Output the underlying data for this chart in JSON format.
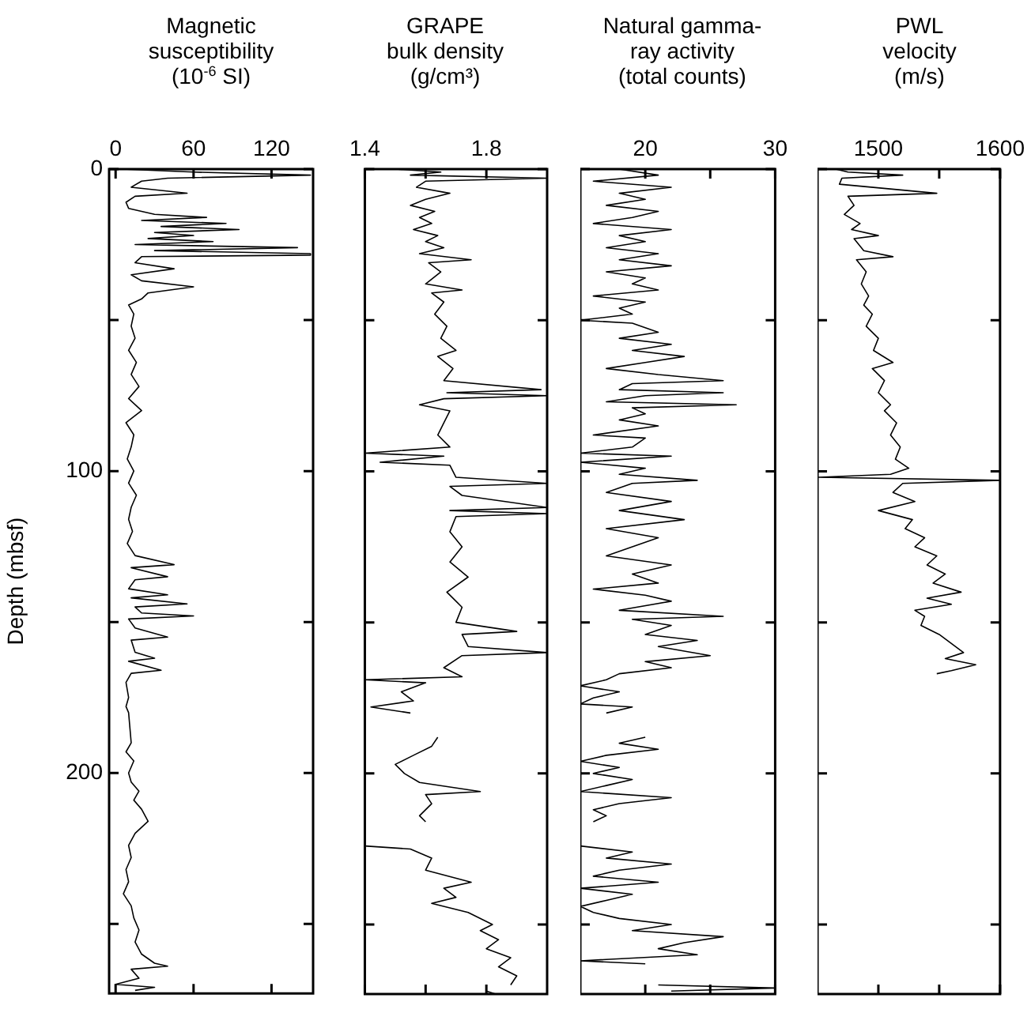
{
  "chart_data": [
    {
      "type": "line",
      "title": "Magnetic\nsusceptibility\n(10$^{-6}$ SI)",
      "ylabel": "Depth (mbsf)",
      "xlim": [
        -5,
        152
      ],
      "xticks": [
        0,
        60,
        120
      ],
      "ylim": [
        273,
        0
      ],
      "yticks": [
        0,
        {
          "value": 50,
          "label": null
        },
        100,
        {
          "value": 150,
          "label": null
        },
        200,
        {
          "value": 250,
          "label": null
        }
      ],
      "grid": false,
      "legend": false,
      "series": [
        {
          "color": "#000000",
          "x": [
            5,
            60,
            150,
            40,
            20,
            12,
            55,
            15,
            8,
            10,
            30,
            70,
            20,
            85,
            35,
            95,
            30,
            60,
            25,
            75,
            15,
            140,
            30,
            150,
            150,
            20,
            15,
            45,
            12,
            20,
            60,
            25,
            20,
            10,
            14,
            12,
            15,
            10,
            16,
            12,
            18,
            10,
            20,
            8,
            14,
            12,
            9,
            14,
            10,
            16,
            12,
            10,
            13,
            9,
            15,
            45,
            12,
            40,
            15,
            10,
            40,
            12,
            55,
            15,
            20,
            60,
            10,
            15,
            40,
            12,
            15,
            30,
            10,
            35,
            12,
            8,
            10,
            8,
            10,
            12,
            8,
            14,
            10,
            12,
            18,
            14,
            20,
            25,
            15,
            10,
            12,
            8,
            10,
            6,
            12,
            14,
            18,
            15,
            20,
            30,
            40,
            12,
            18,
            0,
            30,
            15
          ],
          "values": [
            0,
            1,
            2,
            3,
            4,
            6,
            8,
            9,
            11,
            13,
            15,
            16,
            17,
            18,
            19,
            20,
            21,
            22,
            23,
            24,
            25,
            26,
            27,
            28,
            28.5,
            29,
            31,
            33,
            35,
            37,
            39,
            41,
            43,
            45,
            48,
            52,
            56,
            60,
            64,
            68,
            72,
            76,
            80,
            84,
            88,
            92,
            96,
            100,
            104,
            108,
            112,
            116,
            120,
            124,
            128,
            131,
            132,
            135,
            136,
            139,
            141,
            142,
            144,
            145,
            147,
            148,
            149,
            152,
            155,
            156,
            160,
            162,
            163,
            166,
            167,
            170,
            175,
            178,
            180,
            190,
            193,
            196,
            200,
            203,
            206,
            209,
            212,
            216,
            220,
            224,
            228,
            232,
            236,
            240,
            244,
            248,
            252,
            256,
            260,
            263,
            264,
            265,
            268,
            270,
            271,
            272
          ]
        }
      ]
    },
    {
      "type": "line",
      "title": "GRAPE\nbulk density\n(g/cm³)",
      "xlim": [
        1.4,
        2.0
      ],
      "xticks": [
        1.4,
        {
          "value": 1.6,
          "label": null
        },
        1.8
      ],
      "ylim": [
        273,
        0
      ],
      "yticks": [
        0,
        {
          "value": 50,
          "label": null
        },
        100,
        {
          "value": 150,
          "label": null
        },
        200,
        {
          "value": 250,
          "label": null
        }
      ],
      "tick_labels": "x",
      "grid": false,
      "legend": false,
      "series": [
        {
          "color": "#000000",
          "x": [
            1.5,
            1.65,
            1.55,
            2.0,
            1.6,
            1.57,
            1.68,
            1.6,
            1.55,
            1.63,
            1.58,
            1.62,
            1.56,
            1.64,
            1.6,
            1.66,
            1.58,
            1.75,
            1.61,
            1.65,
            1.6,
            1.72,
            1.62,
            1.66,
            1.63,
            1.67,
            1.65,
            1.7,
            1.64,
            1.69,
            1.66,
            1.98,
            1.67,
            2.0,
            1.66,
            1.58,
            1.68,
            1.66,
            1.64,
            1.68,
            1.4,
            1.66,
            1.45,
            1.68,
            1.7,
            2.0,
            1.68,
            1.72,
            2.0,
            1.68,
            2.0,
            1.7,
            1.68,
            1.72,
            1.68,
            1.74,
            1.67,
            1.72,
            1.7,
            1.9,
            1.72,
            1.74,
            2.0,
            1.72,
            1.66,
            1.72,
            1.4,
            1.6,
            1.52,
            1.56,
            1.42,
            1.55,
            null,
            1.64,
            1.62,
            1.56,
            1.5,
            1.53,
            1.58,
            1.78,
            1.6,
            1.62,
            1.58,
            1.6,
            null,
            1.4,
            1.55,
            1.62,
            1.6,
            1.75,
            1.66,
            1.7,
            1.62,
            1.74,
            1.82,
            1.78,
            1.84,
            1.8,
            1.88,
            1.84,
            1.9,
            1.88,
            null,
            1.8,
            1.83
          ],
          "values": [
            0,
            1,
            2,
            3,
            4,
            6,
            8,
            10,
            12,
            14,
            16,
            18,
            20,
            22,
            24,
            26,
            28,
            30,
            31,
            34,
            38,
            40,
            41,
            44,
            48,
            52,
            56,
            60,
            62,
            66,
            70,
            73,
            74,
            75,
            76,
            78,
            80,
            84,
            88,
            92,
            94,
            95,
            97,
            98,
            102,
            104,
            105,
            108,
            112,
            113,
            114,
            115,
            120,
            125,
            130,
            135,
            140,
            145,
            150,
            153,
            154,
            158,
            160,
            161,
            165,
            168,
            169,
            170,
            173,
            176,
            178,
            180,
            null,
            188,
            191,
            194,
            197,
            200,
            203,
            206,
            207,
            210,
            214,
            216,
            null,
            224,
            225,
            228,
            232,
            236,
            238,
            241,
            243,
            246,
            250,
            252,
            255,
            258,
            261,
            264,
            267,
            270,
            null,
            272,
            273
          ]
        }
      ]
    },
    {
      "type": "line",
      "title": "Natural gamma-\nray activity\n(total counts)",
      "xlim": [
        15,
        30
      ],
      "xticks": [
        20,
        {
          "value": 25,
          "label": null
        },
        30
      ],
      "ylim": [
        273,
        0
      ],
      "yticks": [
        0,
        {
          "value": 50,
          "label": null
        },
        100,
        {
          "value": 150,
          "label": null
        },
        200,
        {
          "value": 250,
          "label": null
        }
      ],
      "tick_labels": "x",
      "grid": false,
      "legend": false,
      "series": [
        {
          "color": "#000000",
          "x": [
            18,
            21,
            16,
            22,
            18,
            20,
            17,
            21,
            19,
            16,
            22,
            18,
            20,
            17,
            21,
            18,
            22,
            17,
            20,
            19,
            21,
            16,
            20,
            18,
            19,
            15,
            19,
            21,
            18,
            22,
            19,
            23,
            20,
            17,
            21,
            26,
            19,
            18,
            26,
            20,
            17,
            27,
            19,
            20,
            18,
            21,
            16,
            20,
            19,
            15,
            22,
            15,
            20,
            18,
            24,
            19,
            17,
            22,
            18,
            23,
            17,
            21,
            19,
            17,
            22,
            19,
            21,
            16,
            20,
            22,
            18,
            26,
            19,
            22,
            20,
            24,
            21,
            25,
            20,
            22,
            18,
            17,
            15,
            18,
            16,
            15,
            19,
            17,
            null,
            20,
            18,
            21,
            17,
            15,
            18,
            16,
            19,
            17,
            15,
            22,
            18,
            16,
            17,
            16,
            null,
            15,
            19,
            17,
            22,
            18,
            16,
            21,
            15,
            19,
            17,
            15,
            16,
            18,
            22,
            19,
            26,
            23,
            21,
            24,
            15,
            20,
            null,
            21,
            30,
            22
          ],
          "values": [
            0,
            2,
            4,
            6,
            8,
            10,
            12,
            14,
            16,
            18,
            20,
            22,
            24,
            26,
            28,
            30,
            32,
            34,
            36,
            38,
            40,
            42,
            44,
            46,
            48,
            50,
            51,
            54,
            56,
            58,
            60,
            62,
            64,
            66,
            68,
            70,
            71,
            73,
            74,
            75,
            77,
            78,
            79,
            81,
            83,
            85,
            88,
            89,
            92,
            94,
            95,
            97,
            99,
            101,
            103,
            104,
            107,
            110,
            113,
            116,
            119,
            122,
            125,
            128,
            131,
            134,
            137,
            139,
            141,
            143,
            146,
            148,
            149,
            151,
            154,
            156,
            158,
            161,
            163,
            165,
            167,
            169,
            171,
            173,
            175,
            177,
            178,
            180,
            null,
            188,
            190,
            192,
            194,
            196,
            198,
            200,
            202,
            204,
            206,
            208,
            210,
            212,
            214,
            216,
            null,
            224,
            226,
            228,
            230,
            232,
            234,
            236,
            238,
            240,
            242,
            244,
            246,
            248,
            250,
            252,
            254,
            256,
            258,
            260,
            262,
            263,
            null,
            270,
            271,
            272
          ]
        }
      ]
    },
    {
      "type": "line",
      "title": "PWL\nvelocity\n(m/s)",
      "xlim": [
        1450,
        1600
      ],
      "xticks": [
        1500,
        {
          "value": 1550,
          "label": null
        },
        1600
      ],
      "ylim": [
        273,
        0
      ],
      "yticks": [
        0,
        {
          "value": 50,
          "label": null
        },
        100,
        {
          "value": 150,
          "label": null
        },
        200,
        {
          "value": 250,
          "label": null
        }
      ],
      "tick_labels": "x",
      "grid": false,
      "legend": false,
      "series": [
        {
          "color": "#000000",
          "x": [
            1465,
            1475,
            1520,
            1470,
            1468,
            1548,
            1475,
            1480,
            1472,
            1485,
            1478,
            1500,
            1480,
            1488,
            1512,
            1482,
            1490,
            1486,
            1492,
            1488,
            1495,
            1490,
            1500,
            1496,
            1512,
            1495,
            1505,
            1500,
            1510,
            1505,
            1515,
            1510,
            1518,
            1514,
            1525,
            1510,
            1451,
            1600,
            1520,
            1512,
            1530,
            1500,
            1528,
            1522,
            1538,
            1530,
            1548,
            1540,
            1555,
            1545,
            1568,
            1540,
            1560,
            1530,
            1538,
            1535,
            1550,
            1560,
            1570,
            1555,
            1580,
            1560,
            1548
          ],
          "values": [
            0,
            1,
            2,
            3,
            5,
            8,
            9,
            12,
            15,
            18,
            20,
            22,
            23,
            27,
            29,
            30,
            34,
            38,
            42,
            45,
            48,
            52,
            56,
            60,
            64,
            66,
            70,
            74,
            78,
            80,
            84,
            88,
            92,
            96,
            99,
            101,
            102,
            103,
            104,
            107,
            110,
            113,
            116,
            119,
            122,
            125,
            128,
            131,
            134,
            137,
            140,
            142,
            144,
            146,
            148,
            151,
            154,
            157,
            160,
            162,
            164,
            166,
            167
          ]
        }
      ]
    }
  ]
}
